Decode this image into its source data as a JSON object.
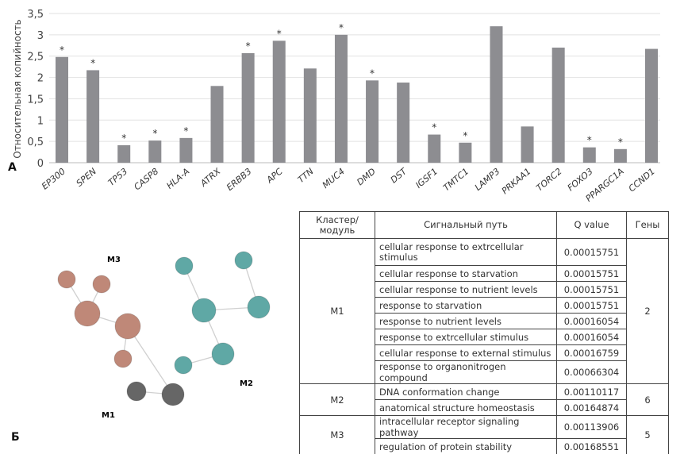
{
  "chart_data": {
    "type": "bar",
    "panel_label": "А",
    "ylabel": "Относительная копийность",
    "xlabel": "",
    "ylim": [
      0,
      3.5
    ],
    "yticks": [
      "0",
      "0,5",
      "1",
      "1,5",
      "2",
      "2,5",
      "3",
      "3,5"
    ],
    "grid": true,
    "bar_color": "#8d8d91",
    "categories": [
      "EP300",
      "SPEN",
      "TP53",
      "CASP8",
      "HLA-A",
      "ATRX",
      "ERBB3",
      "APC",
      "TTN",
      "MUC4",
      "DMD",
      "DST",
      "IGSF1",
      "TMTC1",
      "LAMP3",
      "PRKAA1",
      "TORC2",
      "FOXO3",
      "PPARGC1A",
      "CCND1"
    ],
    "values": [
      2.48,
      2.17,
      0.41,
      0.52,
      0.58,
      1.8,
      2.57,
      2.86,
      2.21,
      3.0,
      1.93,
      1.88,
      0.66,
      0.47,
      3.2,
      0.85,
      2.7,
      0.36,
      0.32,
      2.67
    ],
    "significance_marker": "*",
    "significant": [
      true,
      true,
      true,
      true,
      true,
      false,
      true,
      true,
      false,
      true,
      true,
      false,
      true,
      true,
      false,
      false,
      false,
      true,
      true,
      false
    ]
  },
  "network": {
    "panel_label": "Б",
    "modules": [
      {
        "label": "M1",
        "color": "#666666",
        "nodes": 2
      },
      {
        "label": "M2",
        "color": "#5fa8a5",
        "nodes": 6
      },
      {
        "label": "M3",
        "color": "#bf8878",
        "nodes": 5
      }
    ]
  },
  "table": {
    "headers": [
      "Кластер/ модуль",
      "Сигнальный путь",
      "Q value",
      "Гены"
    ],
    "groups": [
      {
        "module": "M1",
        "genes": "2",
        "rows": [
          {
            "pathway": "cellular response to extrcellular stimulus",
            "q": "0.00015751"
          },
          {
            "pathway": "cellular response to starvation",
            "q": "0.00015751"
          },
          {
            "pathway": "cellular response to nutrient levels",
            "q": "0.00015751"
          },
          {
            "pathway": "response to starvation",
            "q": "0.00015751"
          },
          {
            "pathway": "response to nutrient levels",
            "q": "0.00016054"
          },
          {
            "pathway": "response to extrcellular stimulus",
            "q": "0.00016054"
          },
          {
            "pathway": "cellular response to external stimulus",
            "q": "0.00016759"
          },
          {
            "pathway": "response to organonitrogen compound",
            "q": "0.00066304"
          }
        ]
      },
      {
        "module": "M2",
        "genes": "6",
        "rows": [
          {
            "pathway": "DNA conformation change",
            "q": "0.00110117"
          },
          {
            "pathway": "anatomical structure homeostasis",
            "q": "0.00164874"
          }
        ]
      },
      {
        "module": "M3",
        "genes": "5",
        "rows": [
          {
            "pathway": "intracellular receptor signaling pathway",
            "q": "0.00113906"
          },
          {
            "pathway": "regulation of protein stability",
            "q": "0.00168551"
          }
        ]
      }
    ]
  }
}
